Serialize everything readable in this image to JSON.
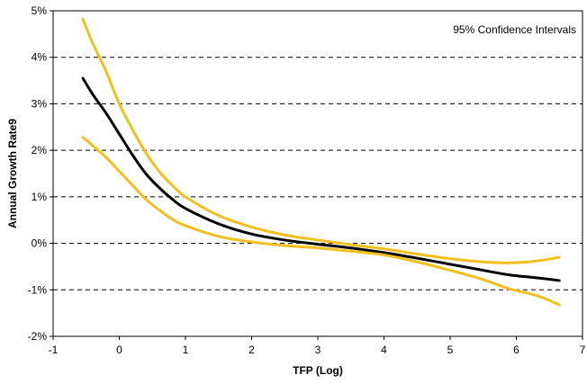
{
  "chart_data": {
    "type": "line",
    "title": "",
    "xlabel": "TFP (Log)",
    "ylabel": "Annual Growth Rate9",
    "xlim": [
      -1,
      7
    ],
    "ylim": [
      -2,
      5
    ],
    "x_ticks": [
      "-1",
      "0",
      "1",
      "2",
      "3",
      "4",
      "5",
      "6",
      "7"
    ],
    "y_ticks": [
      "-2%",
      "-1%",
      "0%",
      "1%",
      "2%",
      "3%",
      "4%",
      "5%"
    ],
    "grid": "horizontal-dashed",
    "legend": {
      "position": "top-right",
      "text": "95% Confidence Intervals"
    },
    "colors": {
      "estimate": "#000000",
      "confidence": "#F2C01E",
      "grid": "#000000"
    },
    "series": [
      {
        "role": "upper",
        "x": [
          -0.55,
          -0.4,
          -0.2,
          0,
          0.2,
          0.4,
          0.6,
          0.8,
          1,
          1.5,
          2,
          2.5,
          3,
          3.5,
          4,
          4.5,
          5,
          5.5,
          5.9,
          6.3,
          6.65
        ],
        "values": [
          4.82,
          4.3,
          3.7,
          3.0,
          2.45,
          1.95,
          1.55,
          1.25,
          1.0,
          0.6,
          0.35,
          0.18,
          0.07,
          -0.03,
          -0.12,
          -0.23,
          -0.33,
          -0.4,
          -0.42,
          -0.38,
          -0.3
        ]
      },
      {
        "role": "estimate",
        "x": [
          -0.55,
          -0.4,
          -0.2,
          0,
          0.2,
          0.4,
          0.6,
          0.8,
          1,
          1.5,
          2,
          2.5,
          3,
          3.5,
          4,
          4.5,
          5,
          5.5,
          5.9,
          6.3,
          6.65
        ],
        "values": [
          3.55,
          3.2,
          2.8,
          2.35,
          1.9,
          1.5,
          1.2,
          0.95,
          0.75,
          0.42,
          0.2,
          0.07,
          -0.02,
          -0.1,
          -0.2,
          -0.32,
          -0.45,
          -0.58,
          -0.68,
          -0.74,
          -0.8
        ]
      },
      {
        "role": "lower",
        "x": [
          -0.55,
          -0.4,
          -0.2,
          0,
          0.2,
          0.4,
          0.6,
          0.8,
          1,
          1.5,
          2,
          2.5,
          3,
          3.5,
          4,
          4.5,
          5,
          5.5,
          5.9,
          6.3,
          6.65
        ],
        "values": [
          2.28,
          2.1,
          1.85,
          1.55,
          1.25,
          0.95,
          0.72,
          0.52,
          0.38,
          0.15,
          0.03,
          -0.05,
          -0.1,
          -0.17,
          -0.25,
          -0.4,
          -0.58,
          -0.78,
          -0.98,
          -1.12,
          -1.32
        ]
      }
    ]
  }
}
